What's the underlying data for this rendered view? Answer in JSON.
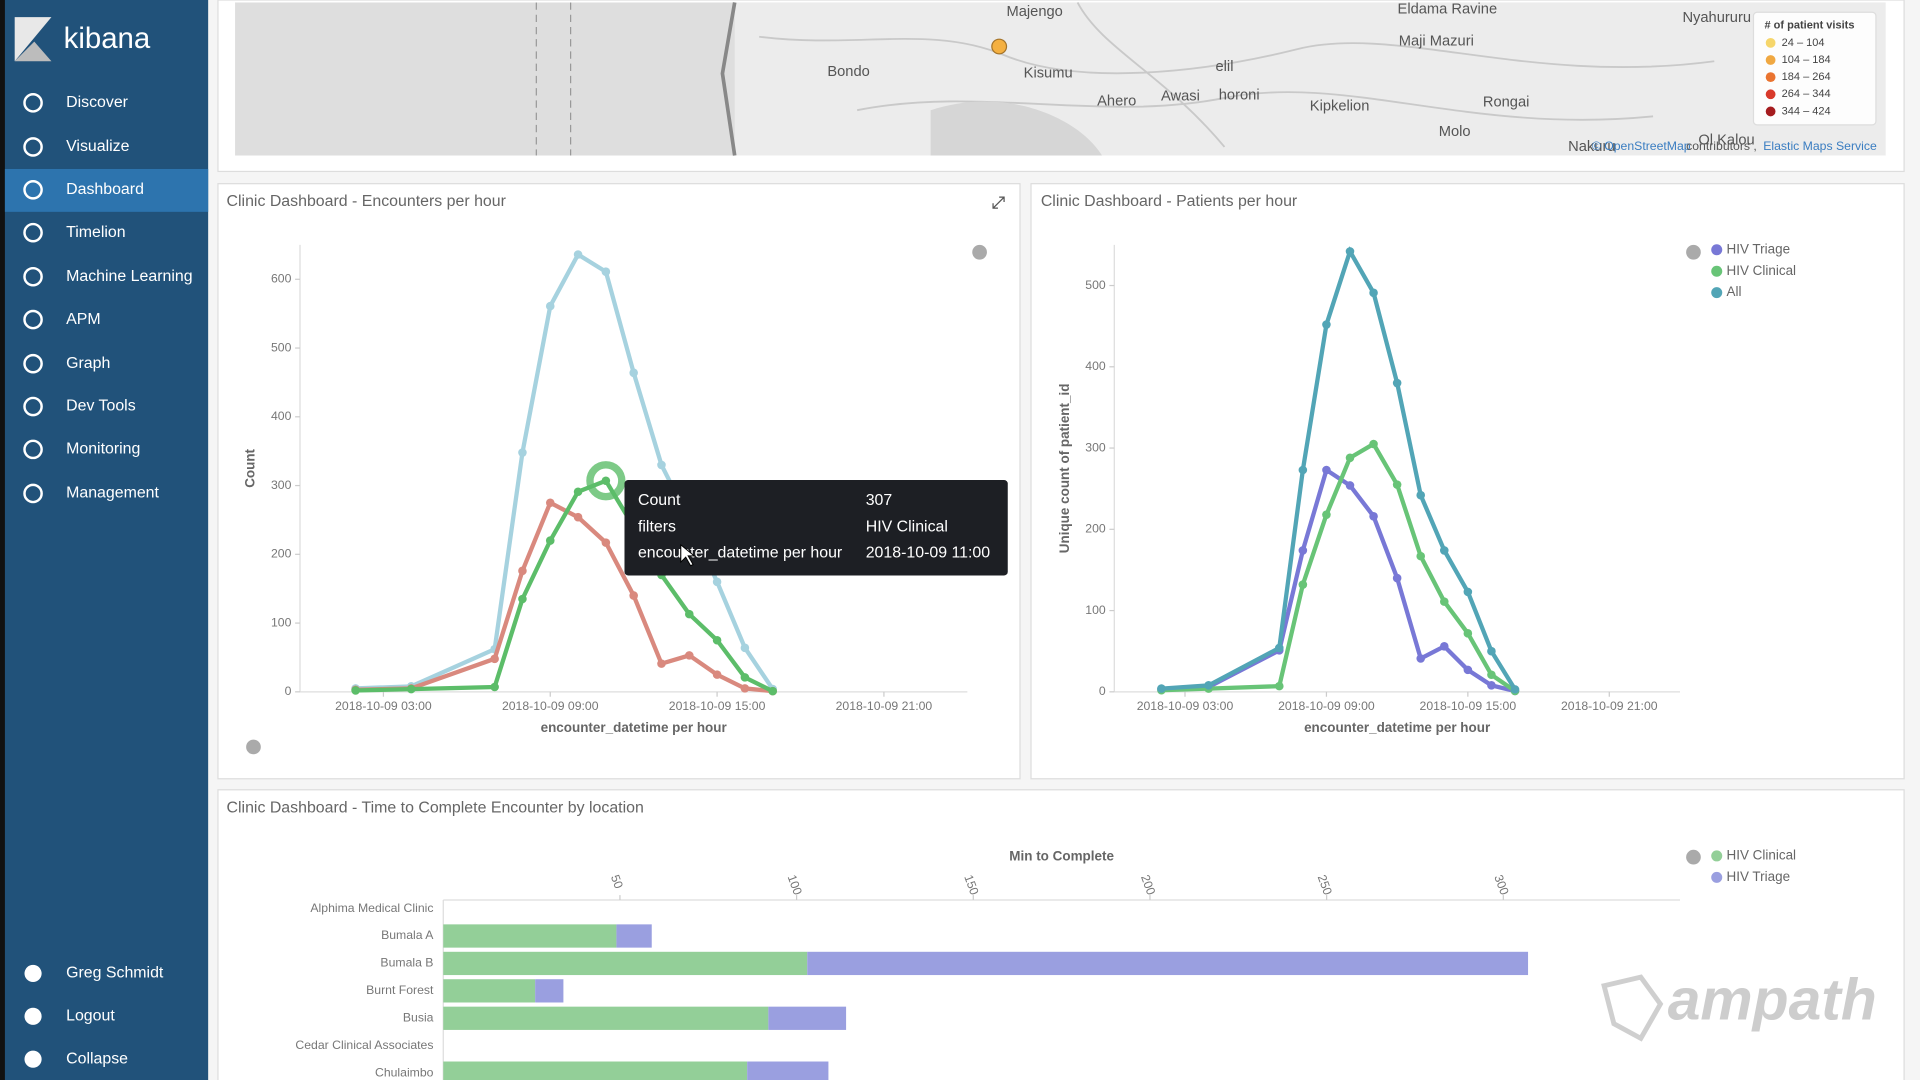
{
  "sidebar": {
    "logo": "kibana",
    "items": [
      "Discover",
      "Visualize",
      "Dashboard",
      "Timelion",
      "Machine Learning",
      "APM",
      "Graph",
      "Dev Tools",
      "Monitoring",
      "Management"
    ],
    "active": 2,
    "footer": [
      "Greg Schmidt",
      "Logout",
      "Collapse"
    ]
  },
  "map": {
    "places": [
      "Majengo",
      "Eldama Ravine",
      "Nyahururu",
      "Maji Mazuri",
      "elil",
      "Bondo",
      "Kisumu",
      "Ahero",
      "Awasi",
      "horoni",
      "Kipkelion",
      "Rongai",
      "Molo",
      "Ol Kalou",
      "Nakuru"
    ],
    "legend": {
      "title": "# of patient visits",
      "items": [
        "24 – 104",
        "104 – 184",
        "184 – 264",
        "264 – 344",
        "344 – 424"
      ],
      "colors": [
        "#f6d66b",
        "#f0a842",
        "#ea7430",
        "#d83a2b",
        "#a51c1f"
      ]
    },
    "attribution": [
      "© OpenStreetMap",
      "contributors ,",
      "Elastic Maps Service"
    ]
  },
  "chart_data": [
    {
      "type": "line",
      "title": "Clinic Dashboard - Encounters per hour",
      "x": [
        "2018-10-09 02:00",
        "2018-10-09 04:00",
        "2018-10-09 07:00",
        "2018-10-09 08:00",
        "2018-10-09 09:00",
        "2018-10-09 10:00",
        "2018-10-09 11:00",
        "2018-10-09 12:00",
        "2018-10-09 13:00",
        "2018-10-09 14:00",
        "2018-10-09 15:00",
        "2018-10-09 16:00",
        "2018-10-09 17:00"
      ],
      "series": [
        {
          "color": "#a6d2df",
          "values": [
            5,
            8,
            62,
            348,
            561,
            636,
            611,
            464,
            330,
            250,
            160,
            64,
            4
          ]
        },
        {
          "color": "#d9897e",
          "values": [
            3,
            5,
            48,
            176,
            275,
            254,
            217,
            140,
            41,
            53,
            25,
            5,
            1
          ]
        },
        {
          "color": "#5cbd69",
          "values": [
            2,
            4,
            7,
            135,
            220,
            291,
            307,
            240,
            170,
            113,
            75,
            21,
            1
          ]
        }
      ],
      "xlim": [
        "2018-10-09 00:00",
        "2018-10-10 00:00"
      ],
      "xticks": [
        "2018-10-09 03:00",
        "2018-10-09 09:00",
        "2018-10-09 15:00",
        "2018-10-09 21:00"
      ],
      "ylim": [
        0,
        650
      ],
      "yticks": [
        0,
        100,
        200,
        300,
        400,
        500,
        600
      ],
      "x_label": "encounter_datetime per hour",
      "y_label": "Count"
    },
    {
      "type": "line",
      "title": "Clinic Dashboard - Patients per hour",
      "x": [
        "2018-10-09 02:00",
        "2018-10-09 04:00",
        "2018-10-09 07:00",
        "2018-10-09 08:00",
        "2018-10-09 09:00",
        "2018-10-09 10:00",
        "2018-10-09 11:00",
        "2018-10-09 12:00",
        "2018-10-09 13:00",
        "2018-10-09 14:00",
        "2018-10-09 15:00",
        "2018-10-09 16:00",
        "2018-10-09 17:00"
      ],
      "series": [
        {
          "name": "HIV Triage",
          "color": "#7878d6",
          "values": [
            3,
            6,
            51,
            174,
            273,
            254,
            216,
            140,
            41,
            56,
            27,
            8,
            1
          ]
        },
        {
          "name": "HIV Clinical",
          "color": "#68c477",
          "values": [
            2,
            4,
            7,
            132,
            218,
            288,
            305,
            255,
            167,
            111,
            72,
            21,
            1
          ]
        },
        {
          "name": "All",
          "color": "#52a5b6",
          "values": [
            4,
            8,
            54,
            273,
            452,
            542,
            491,
            380,
            242,
            174,
            123,
            50,
            3
          ]
        }
      ],
      "xlim": [
        "2018-10-09 00:00",
        "2018-10-10 00:00"
      ],
      "xticks": [
        "2018-10-09 03:00",
        "2018-10-09 09:00",
        "2018-10-09 15:00",
        "2018-10-09 21:00"
      ],
      "ylim": [
        0,
        550
      ],
      "yticks": [
        0,
        100,
        200,
        300,
        400,
        500
      ],
      "x_label": "encounter_datetime per hour",
      "y_label": "Unique count of patient_id"
    },
    {
      "type": "stacked_barh",
      "title": "Clinic Dashboard - Time to Complete Encounter by location",
      "categories": [
        "Alphima Medical Clinic",
        "Bumala A",
        "Bumala B",
        "Burnt Forest",
        "Busia",
        "Cedar Clinical Associates",
        "Chulaimbo"
      ],
      "series": [
        {
          "name": "HIV Clinical",
          "color": "#93cf98",
          "values": [
            null,
            49,
            103,
            26,
            92,
            null,
            86
          ]
        },
        {
          "name": "HIV Triage",
          "color": "#9a9fe0",
          "values": [
            null,
            10,
            204,
            8,
            22,
            null,
            23
          ]
        }
      ],
      "xlim": [
        0,
        350
      ],
      "xticks": [
        50,
        100,
        150,
        200,
        250,
        300
      ],
      "x_label": "Min to Complete"
    }
  ],
  "tooltip": {
    "rows": [
      [
        "Count",
        "307"
      ],
      [
        "filters",
        "HIV Clinical"
      ],
      [
        "encounter_datetime per hour",
        "2018-10-09 11:00"
      ]
    ]
  },
  "watermark": "ampath"
}
